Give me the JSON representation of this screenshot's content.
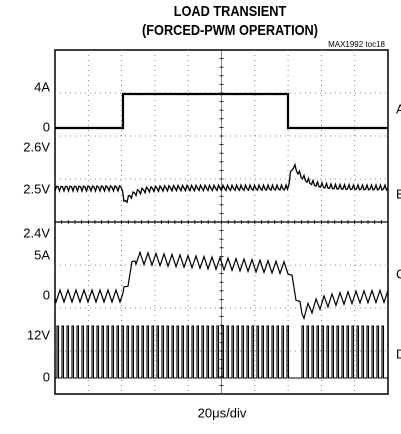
{
  "header": {
    "title": "LOAD TRANSIENT",
    "subtitle": "(FORCED-PWM OPERATION)",
    "tag": "MAX1992 toc18"
  },
  "left_labels": [
    "4A",
    "0",
    "2.6V",
    "2.5V",
    "2.4V",
    "5A",
    "0",
    "12V",
    "0"
  ],
  "trace_names": [
    "A",
    "B",
    "C",
    "D"
  ],
  "timebase": "20μs/div"
}
